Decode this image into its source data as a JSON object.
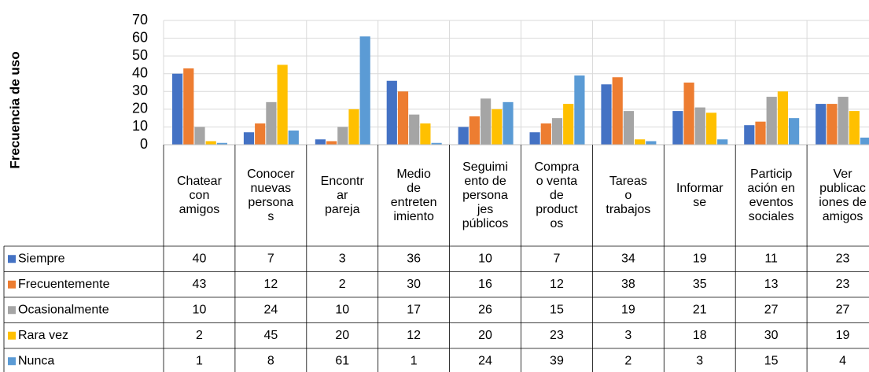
{
  "chart_data": {
    "type": "bar",
    "y_axis_label": "Frecuencia de uso",
    "categories": [
      "Chatear\ncon\namigos",
      "Conocer\nnuevas\npersona\ns",
      "Encontr\nar\npareja",
      "Medio\nde\nentreten\nimiento",
      "Seguimi\nento de\npersona\njes\npúblicos",
      "Compra\no venta\nde\nproduct\nos",
      "Tareas\no\ntrabajos",
      "Informar\nse",
      "Particip\nación en\neventos\nsociales",
      "Ver\npublicac\niones de\namigos"
    ],
    "series": [
      {
        "name": "Siempre",
        "color": "#4472c4",
        "values": [
          40,
          7,
          3,
          36,
          10,
          7,
          34,
          19,
          11,
          23
        ]
      },
      {
        "name": "Frecuentemente",
        "color": "#ed7d31",
        "values": [
          43,
          12,
          2,
          30,
          16,
          12,
          38,
          35,
          13,
          23
        ]
      },
      {
        "name": "Ocasionalmente",
        "color": "#a5a5a5",
        "values": [
          10,
          24,
          10,
          17,
          26,
          15,
          19,
          21,
          27,
          27
        ]
      },
      {
        "name": "Rara vez",
        "color": "#ffc000",
        "values": [
          2,
          45,
          20,
          12,
          20,
          23,
          3,
          18,
          30,
          19
        ]
      },
      {
        "name": "Nunca",
        "color": "#5b9bd5",
        "values": [
          1,
          8,
          61,
          1,
          24,
          39,
          2,
          3,
          15,
          4
        ]
      }
    ],
    "ylim": [
      0,
      70
    ],
    "yticks": [
      0,
      10,
      20,
      30,
      40,
      50,
      60,
      70
    ],
    "grid": true,
    "data_table": true
  }
}
